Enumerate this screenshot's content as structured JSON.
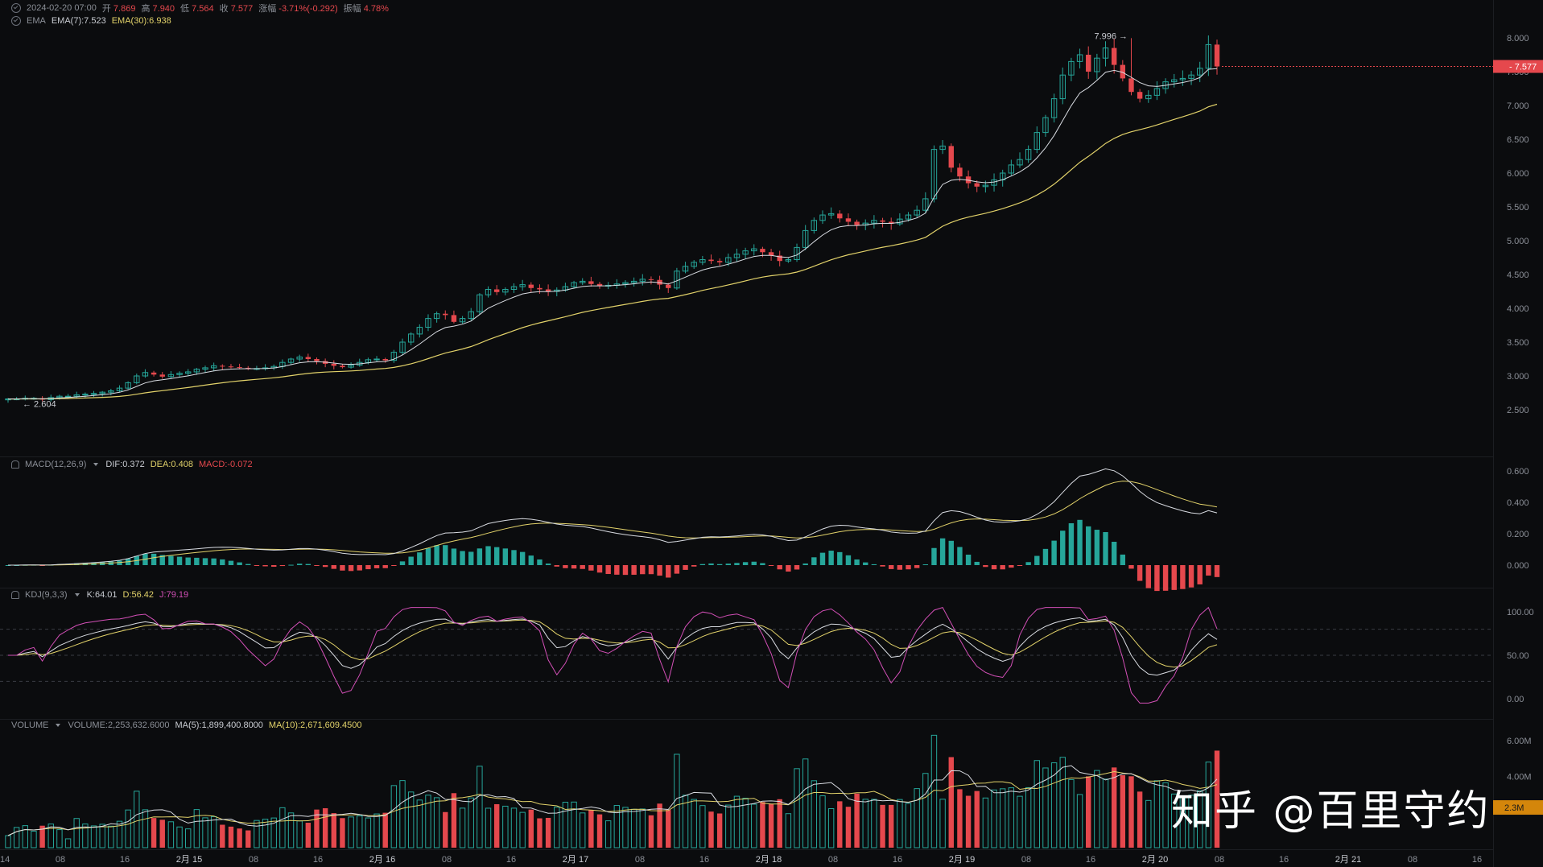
{
  "header": {
    "date": "2024-02-20 07:00",
    "open_label": "开",
    "open": "7.869",
    "high_label": "高",
    "high": "7.940",
    "low_label": "低",
    "low": "7.564",
    "close_label": "收",
    "close": "7.577",
    "change_label": "涨幅",
    "change": "-3.71%(-0.292)",
    "amplitude_label": "振幅",
    "amplitude": "4.78%"
  },
  "ema_legend": {
    "name": "EMA",
    "ema7": "EMA(7):7.523",
    "ema30": "EMA(30):6.938"
  },
  "macd_legend": {
    "name": "MACD(12,26,9)",
    "dif": "DIF:0.372",
    "dea": "DEA:0.408",
    "macd": "MACD:-0.072"
  },
  "kdj_legend": {
    "name": "KDJ(9,3,3)",
    "k": "K:64.01",
    "d": "D:56.42",
    "j": "J:79.19"
  },
  "volume_legend": {
    "name": "VOLUME",
    "volume": "VOLUME:2,253,632.6000",
    "ma5": "MA(5):1,899,400.8000",
    "ma10": "MA(10):2,671,609.4500"
  },
  "price_axis": [
    "8.000",
    "7.500",
    "7.000",
    "6.500",
    "6.000",
    "5.500",
    "5.000",
    "4.500",
    "4.000",
    "3.500",
    "3.000",
    "2.500"
  ],
  "current_price_tag": "7.577",
  "high_marker": "7.996",
  "low_marker": "2.604",
  "macd_axis": [
    "0.600",
    "0.400",
    "0.200",
    "0.000"
  ],
  "kdj_axis": [
    "100.00",
    "50.00",
    "0.00"
  ],
  "volume_axis": [
    "6.00M",
    "4.00M"
  ],
  "volume_tag": "2.3M",
  "time_axis": [
    "14",
    "08",
    "16",
    "2月 15",
    "08",
    "16",
    "2月 16",
    "08",
    "16",
    "2月 17",
    "08",
    "16",
    "2月 18",
    "08",
    "16",
    "2月 19",
    "08",
    "16",
    "2月 20",
    "08",
    "16",
    "2月 21",
    "08",
    "16"
  ],
  "watermark": "知乎 @百里守约",
  "colors": {
    "up": "#26a69a",
    "down": "#e5484d",
    "ema7": "#d9dce2",
    "ema30": "#e2d26a",
    "kdj_j": "#d24fb6",
    "bg": "#0b0c0e"
  },
  "chart_data": {
    "type": "candlestick",
    "interval_hours": 4,
    "close_series_approx": [
      2.66,
      2.66,
      2.67,
      2.67,
      2.65,
      2.68,
      2.7,
      2.7,
      2.72,
      2.73,
      2.74,
      2.76,
      2.78,
      2.82,
      2.9,
      3.0,
      3.05,
      3.02,
      2.99,
      3.02,
      3.04,
      3.06,
      3.1,
      3.12,
      3.15,
      3.14,
      3.13,
      3.12,
      3.11,
      3.11,
      3.12,
      3.14,
      3.2,
      3.25,
      3.28,
      3.25,
      3.22,
      3.18,
      3.15,
      3.13,
      3.16,
      3.2,
      3.24,
      3.25,
      3.23,
      3.35,
      3.5,
      3.62,
      3.72,
      3.85,
      3.92,
      3.9,
      3.8,
      3.85,
      3.95,
      4.2,
      4.28,
      4.24,
      4.28,
      4.32,
      4.35,
      4.3,
      4.28,
      4.25,
      4.27,
      4.32,
      4.38,
      4.4,
      4.36,
      4.33,
      4.34,
      4.36,
      4.38,
      4.4,
      4.43,
      4.42,
      4.35,
      4.3,
      4.55,
      4.62,
      4.68,
      4.72,
      4.7,
      4.68,
      4.75,
      4.8,
      4.85,
      4.88,
      4.83,
      4.78,
      4.7,
      4.72,
      4.9,
      5.15,
      5.3,
      5.38,
      5.4,
      5.33,
      5.28,
      5.23,
      5.26,
      5.3,
      5.28,
      5.25,
      5.32,
      5.38,
      5.45,
      5.62,
      6.35,
      6.4,
      6.08,
      5.95,
      5.85,
      5.8,
      5.82,
      5.9,
      6.0,
      6.12,
      6.2,
      6.35,
      6.6,
      6.82,
      7.1,
      7.45,
      7.65,
      7.75,
      7.5,
      7.7,
      7.85,
      7.6,
      7.4,
      7.2,
      7.1,
      7.15,
      7.25,
      7.35,
      7.38,
      7.4,
      7.45,
      7.55,
      7.9,
      7.577
    ],
    "ema7_last": 7.523,
    "ema30_last": 6.938,
    "price_high": 7.996,
    "price_low": 2.604,
    "y_range": [
      2.45,
      8.2
    ],
    "macd": {
      "dif": 0.372,
      "dea": 0.408,
      "hist": -0.072
    },
    "kdj": {
      "k": 64.01,
      "d": 56.42,
      "j": 79.19
    },
    "volume": {
      "last": 2253632.6,
      "ma5": 1899400.8,
      "ma10": 2671609.45
    }
  }
}
